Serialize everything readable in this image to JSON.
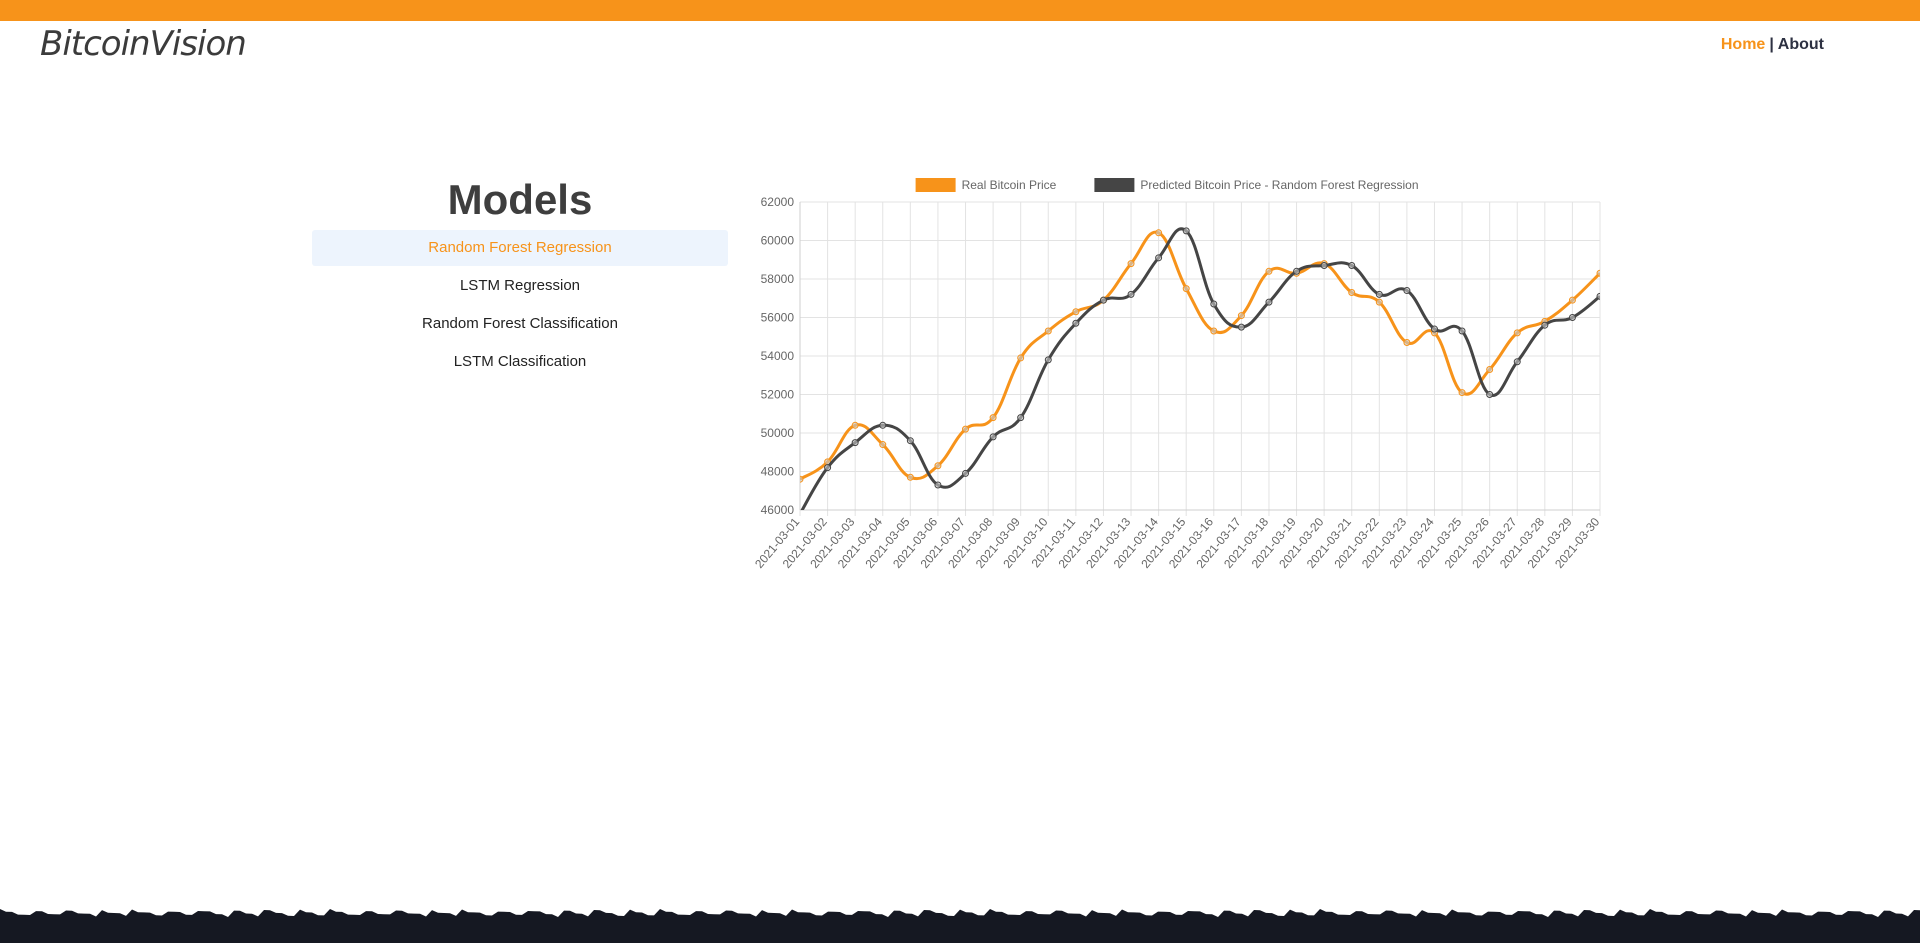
{
  "brand": {
    "logo": "BitcoinVision"
  },
  "nav": {
    "home": "Home",
    "separator": "|",
    "about": "About"
  },
  "models": {
    "title": "Models",
    "items": [
      {
        "label": "Random Forest Regression"
      },
      {
        "label": "LSTM Regression"
      },
      {
        "label": "Random Forest Classification"
      },
      {
        "label": "LSTM Classification"
      }
    ]
  },
  "colors": {
    "accent": "#f7931a",
    "predicted": "#454545",
    "footer": "#151822"
  },
  "chart_data": {
    "type": "line",
    "title": "",
    "xlabel": "",
    "ylabel": "",
    "ylim": [
      46000,
      62000
    ],
    "yticks": [
      46000,
      48000,
      50000,
      52000,
      54000,
      56000,
      58000,
      60000,
      62000
    ],
    "grid": true,
    "legend": "top-center",
    "categories": [
      "2021-03-01",
      "2021-03-02",
      "2021-03-03",
      "2021-03-04",
      "2021-03-05",
      "2021-03-06",
      "2021-03-07",
      "2021-03-08",
      "2021-03-09",
      "2021-03-10",
      "2021-03-11",
      "2021-03-12",
      "2021-03-13",
      "2021-03-14",
      "2021-03-15",
      "2021-03-16",
      "2021-03-17",
      "2021-03-18",
      "2021-03-19",
      "2021-03-20",
      "2021-03-21",
      "2021-03-22",
      "2021-03-23",
      "2021-03-24",
      "2021-03-25",
      "2021-03-26",
      "2021-03-27",
      "2021-03-28",
      "2021-03-29",
      "2021-03-30"
    ],
    "series": [
      {
        "name": "Real Bitcoin Price",
        "color": "#f7931a",
        "values": [
          47600,
          48500,
          50400,
          49400,
          47700,
          48300,
          50200,
          50800,
          53900,
          55300,
          56300,
          56900,
          58800,
          60400,
          57500,
          55300,
          56100,
          58400,
          58300,
          58800,
          57300,
          56800,
          54700,
          55200,
          52100,
          53300,
          55200,
          55800,
          56900,
          58300
        ]
      },
      {
        "name": "Predicted Bitcoin Price - Random Forest Regression",
        "color": "#454545",
        "values": [
          45800,
          48200,
          49500,
          50400,
          49600,
          47300,
          47900,
          49800,
          50800,
          53800,
          55700,
          56900,
          57200,
          59100,
          60500,
          56700,
          55500,
          56800,
          58400,
          58700,
          58700,
          57200,
          57400,
          55400,
          55300,
          52000,
          53700,
          55600,
          56000,
          57100
        ]
      }
    ]
  }
}
